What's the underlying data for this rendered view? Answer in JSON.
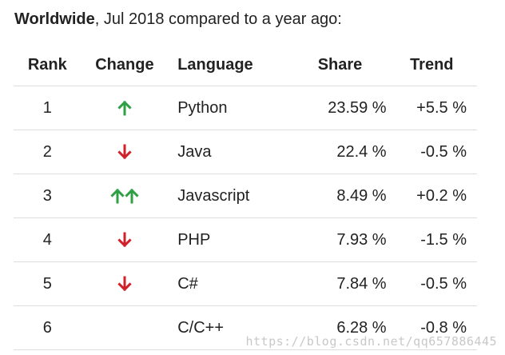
{
  "heading": {
    "bold": "Worldwide",
    "rest": ", Jul 2018 compared to a year ago:"
  },
  "columns": {
    "rank": "Rank",
    "change": "Change",
    "language": "Language",
    "share": "Share",
    "trend": "Trend"
  },
  "rows": [
    {
      "rank": "1",
      "change": "up",
      "language": "Python",
      "share": "23.59 %",
      "trend": "+5.5 %"
    },
    {
      "rank": "2",
      "change": "down",
      "language": "Java",
      "share": "22.4 %",
      "trend": "-0.5 %"
    },
    {
      "rank": "3",
      "change": "up-up",
      "language": "Javascript",
      "share": "8.49 %",
      "trend": "+0.2 %"
    },
    {
      "rank": "4",
      "change": "down",
      "language": "PHP",
      "share": "7.93 %",
      "trend": "-1.5 %"
    },
    {
      "rank": "5",
      "change": "down",
      "language": "C#",
      "share": "7.84 %",
      "trend": "-0.5 %"
    },
    {
      "rank": "6",
      "change": "",
      "language": "C/C++",
      "share": "6.28 %",
      "trend": "-0.8 %"
    }
  ],
  "icons": {
    "up": "arrow-up-icon",
    "down": "arrow-down-icon"
  },
  "colors": {
    "up": "#2ea043",
    "down": "#d0202a"
  },
  "watermark": "https://blog.csdn.net/qq657886445"
}
